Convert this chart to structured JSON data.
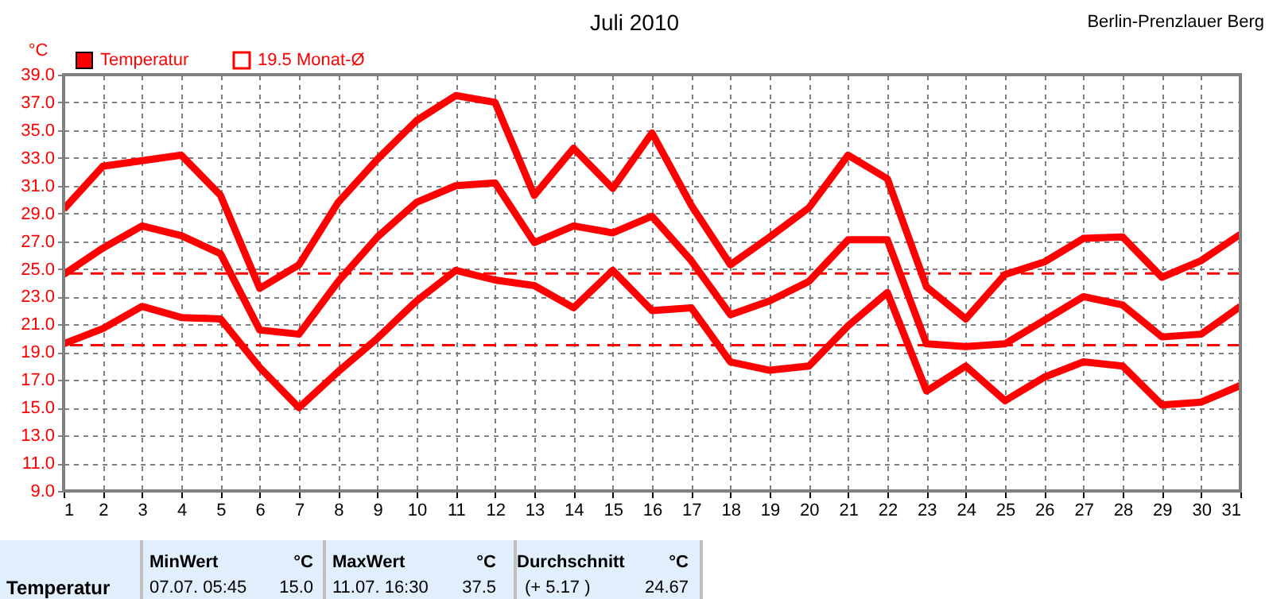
{
  "chart_data": {
    "type": "line",
    "title": "Juli 2010",
    "subtitle": "Berlin-Prenzlauer Berg",
    "ylabel": "°C",
    "x": [
      1,
      2,
      3,
      4,
      5,
      6,
      7,
      8,
      9,
      10,
      11,
      12,
      13,
      14,
      15,
      16,
      17,
      18,
      19,
      20,
      21,
      22,
      23,
      24,
      25,
      26,
      27,
      28,
      29,
      30,
      31
    ],
    "series": [
      {
        "color": "#ff0000",
        "values": [
          29.3,
          32.4,
          32.8,
          33.2,
          30.3,
          23.6,
          25.3,
          29.8,
          32.9,
          35.7,
          37.5,
          37.0,
          30.3,
          33.7,
          30.8,
          34.8,
          29.6,
          25.3,
          27.3,
          29.4,
          33.2,
          31.5,
          23.7,
          21.4,
          24.6,
          25.5,
          27.2,
          27.3,
          24.4,
          25.6,
          27.5
        ]
      },
      {
        "name": "Temperatur",
        "color": "#ff0000",
        "values": [
          24.6,
          26.5,
          28.1,
          27.4,
          26.1,
          20.6,
          20.3,
          24.1,
          27.3,
          29.8,
          31.0,
          31.2,
          26.9,
          28.1,
          27.6,
          28.8,
          25.6,
          21.7,
          22.7,
          24.1,
          27.1,
          27.1,
          19.6,
          19.4,
          19.6,
          21.3,
          23.0,
          22.4,
          20.1,
          20.3,
          22.3
        ]
      },
      {
        "color": "#ff0000",
        "values": [
          19.6,
          20.7,
          22.3,
          21.5,
          21.4,
          17.9,
          15.0,
          17.6,
          20.0,
          22.7,
          24.9,
          24.2,
          23.8,
          22.2,
          24.9,
          22.0,
          22.2,
          18.3,
          17.7,
          18.0,
          20.9,
          23.3,
          16.2,
          18.0,
          15.5,
          17.2,
          18.3,
          18.0,
          15.2,
          15.4,
          16.6
        ]
      }
    ],
    "xlim": [
      1,
      31
    ],
    "xticks": [
      1,
      2,
      3,
      4,
      5,
      6,
      7,
      8,
      9,
      10,
      11,
      12,
      13,
      14,
      15,
      16,
      17,
      18,
      19,
      20,
      21,
      22,
      23,
      24,
      25,
      26,
      27,
      28,
      29,
      30,
      31
    ],
    "ylim": [
      9,
      39
    ],
    "yticks": [
      {
        "value": 9,
        "label": "9.0"
      },
      {
        "value": 11,
        "label": "11.0"
      },
      {
        "value": 13,
        "label": "13.0"
      },
      {
        "value": 15,
        "label": "15.0"
      },
      {
        "value": 17,
        "label": "17.0"
      },
      {
        "value": 19,
        "label": "19.0"
      },
      {
        "value": 21,
        "label": "21.0"
      },
      {
        "value": 23,
        "label": "23.0"
      },
      {
        "value": 25,
        "label": "25.0"
      },
      {
        "value": 27,
        "label": "27.0"
      },
      {
        "value": 29,
        "label": "29.0"
      },
      {
        "value": 31,
        "label": "31.0"
      },
      {
        "value": 33,
        "label": "33.0"
      },
      {
        "value": 35,
        "label": "35.0"
      },
      {
        "value": 37,
        "label": "37.0"
      },
      {
        "value": 39,
        "label": "39.0"
      }
    ],
    "ref_lines": [
      {
        "axis": "y",
        "value": 24.67,
        "color": "#ff0000",
        "line_style": "dashed"
      },
      {
        "axis": "y",
        "value": 19.5,
        "label": "19.5 Monat-Ø",
        "color": "#ff0000",
        "line_style": "dashed"
      }
    ],
    "grid": true,
    "legend": "top left",
    "marker": "none",
    "line_style": "solid",
    "annotations": [
      "Temperatur",
      "MinWert",
      "°C",
      "07.07.  05:45",
      "15.0",
      "MaxWert",
      "°C",
      "11.07.  16:30",
      "37.5",
      "Durchschnitt",
      "°C",
      "(+ 5.17 )",
      "24.67"
    ]
  }
}
